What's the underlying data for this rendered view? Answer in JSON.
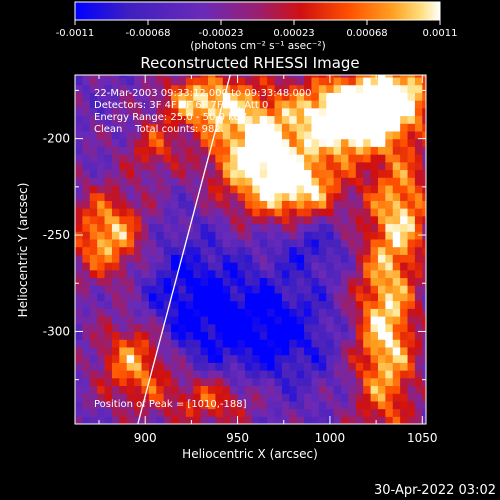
{
  "colorbar": {
    "ticks": [
      "-0.0011",
      "-0.00068",
      "-0.00023",
      "0.00023",
      "0.00068",
      "0.0011"
    ],
    "units": "(photons cm⁻² s⁻¹ asec⁻²)",
    "min": -0.0011,
    "max": 0.0011
  },
  "annotations": {
    "time": "22-Mar-2003 09:33:12.000 to 09:33:48.000",
    "detectors": "Detectors: 3F 4F 5F 6F 7F 8F, Att 0",
    "energy": "Energy Range: 25.0 - 50.0 keV",
    "clean": "Clean    Total counts: 982.",
    "peak": "Position of Peak = [1010,-188]"
  },
  "footer": {
    "timestamp": "30-Apr-2022 03:02"
  },
  "chart_data": {
    "type": "heatmap",
    "title": "Reconstructed RHESSI Image",
    "xlabel": "Heliocentric X (arcsec)",
    "ylabel": "Heliocentric Y (arcsec)",
    "xlim": [
      862,
      1052
    ],
    "ylim": [
      -348,
      -167
    ],
    "xticks": [
      900,
      950,
      1000,
      1050
    ],
    "yticks": [
      -200,
      -250,
      -300
    ],
    "grid": false,
    "colormap": "blue-purple-red-yellow-white",
    "colors": {
      "cmap_stops": [
        "#0000ff",
        "#4020c0",
        "#6a2ab8",
        "#9a1f70",
        "#d01010",
        "#ff5000",
        "#ffa020",
        "#ffe080",
        "#ffffff"
      ]
    },
    "limb": {
      "x1": 896,
      "y1": -348,
      "x2": 946,
      "y2": -167
    },
    "peak": {
      "x": 1010,
      "y": -188
    },
    "field": {
      "base": -0.00035,
      "blobs": [
        {
          "x": 1010,
          "y": -188,
          "sx": 18,
          "sy": 14,
          "a": 0.0022
        },
        {
          "x": 960,
          "y": -205,
          "sx": 18,
          "sy": 22,
          "a": 0.0016
        },
        {
          "x": 930,
          "y": -180,
          "sx": 15,
          "sy": 10,
          "a": 0.0012
        },
        {
          "x": 1040,
          "y": -175,
          "sx": 14,
          "sy": 16,
          "a": 0.0012
        },
        {
          "x": 985,
          "y": -225,
          "sx": 16,
          "sy": 12,
          "a": 0.0012
        },
        {
          "x": 1030,
          "y": -300,
          "sx": 12,
          "sy": 40,
          "a": 0.0014
        },
        {
          "x": 1040,
          "y": -235,
          "sx": 12,
          "sy": 20,
          "a": 0.001
        },
        {
          "x": 880,
          "y": -250,
          "sx": 14,
          "sy": 16,
          "a": 0.0013
        },
        {
          "x": 895,
          "y": -315,
          "sx": 14,
          "sy": 16,
          "a": 0.0012
        },
        {
          "x": 935,
          "y": -335,
          "sx": 18,
          "sy": 10,
          "a": 0.0009
        },
        {
          "x": 905,
          "y": -205,
          "sx": 10,
          "sy": 10,
          "a": 0.0007
        },
        {
          "x": 925,
          "y": -285,
          "sx": 22,
          "sy": 25,
          "a": -0.0008
        },
        {
          "x": 970,
          "y": -300,
          "sx": 22,
          "sy": 20,
          "a": -0.0008
        },
        {
          "x": 990,
          "y": -255,
          "sx": 14,
          "sy": 10,
          "a": -0.0005
        }
      ]
    }
  }
}
